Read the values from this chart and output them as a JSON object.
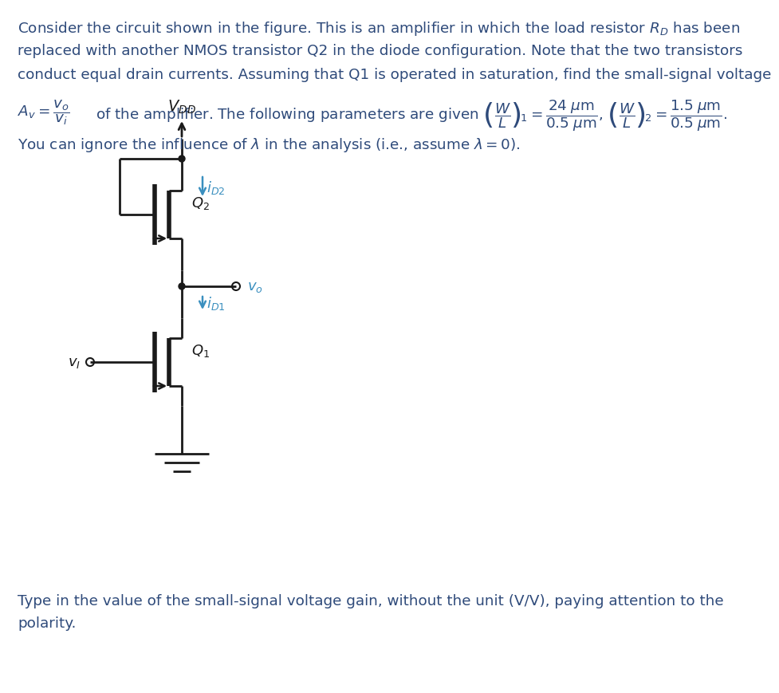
{
  "bg_color": "#ffffff",
  "text_color": "#2e4a7a",
  "circuit_color": "#1a1a1a",
  "arrow_color": "#3a8fbf",
  "fig_width": 9.42,
  "fig_height": 8.5,
  "para_lines": [
    "Consider the circuit shown in the figure. This is an amplifier in which the load resistor $R_D$ has been",
    "replaced with another NMOS transistor Q2 in the diode configuration. Note that the two transistors",
    "conduct equal drain currents. Assuming that Q1 is operated in saturation, find the small-signal voltage"
  ],
  "bottom_text_lines": [
    "Type in the value of the small-signal voltage gain, without the unit (V/V), paying attention to the",
    "polarity."
  ],
  "font_size_main": 13.2,
  "font_size_bottom": 13.2
}
